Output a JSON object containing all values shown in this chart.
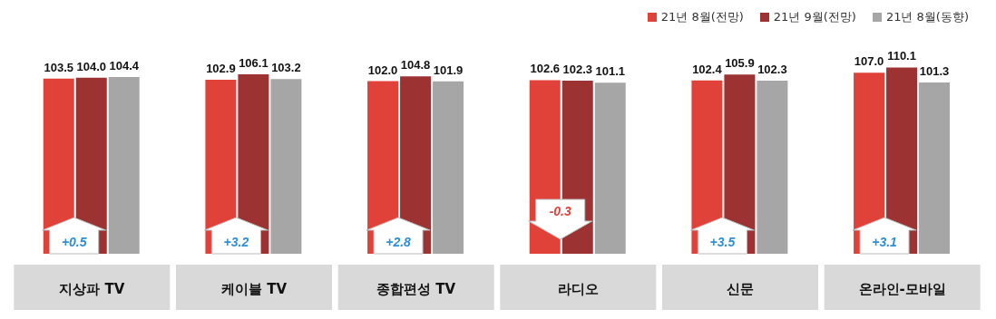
{
  "chart_data": {
    "type": "bar",
    "categories": [
      "지상파 TV",
      "케이블 TV",
      "종합편성 TV",
      "라디오",
      "신문",
      "온라인-모바일"
    ],
    "series": [
      {
        "name": "21년 8월(전망)",
        "color": "#e0423a",
        "values": [
          103.5,
          102.9,
          102.0,
          102.6,
          102.4,
          107.0
        ],
        "value_labels": [
          "103.5",
          "102.9",
          "102.0",
          "102.6",
          "102.4",
          "107.0"
        ]
      },
      {
        "name": "21년 9월(전망)",
        "color": "#9c3232",
        "values": [
          104.0,
          106.1,
          104.8,
          102.3,
          105.9,
          110.1
        ],
        "value_labels": [
          "104.0",
          "106.1",
          "104.8",
          "102.3",
          "105.9",
          "110.1"
        ]
      },
      {
        "name": "21년 8월(동향)",
        "color": "#a6a6a6",
        "values": [
          104.4,
          103.2,
          101.9,
          101.1,
          102.3,
          101.3
        ],
        "value_labels": [
          "104.4",
          "103.2",
          "101.9",
          "101.1",
          "102.3",
          "101.3"
        ]
      }
    ],
    "legend": "top right",
    "annotations": [
      "+0.5",
      "+3.2",
      "+2.8",
      "-0.3",
      "+3.5",
      "+3.1"
    ]
  }
}
